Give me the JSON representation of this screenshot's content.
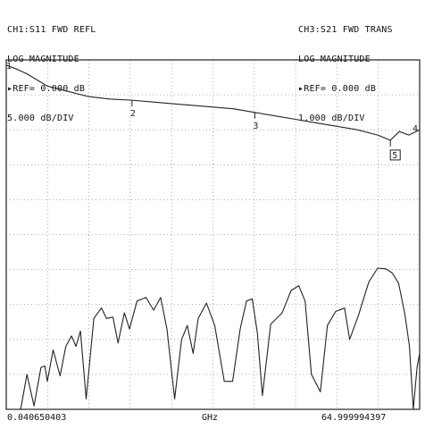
{
  "header": {
    "left": [
      "CH1:S11 FWD REFL",
      "LOG MAGNITUDE",
      "▸REF= 0.000 dB",
      "5.000 dB/DIV"
    ],
    "right": [
      "CH3:S21 FWD TRANS",
      "LOG MAGNITUDE",
      "▸REF= 0.000 dB",
      "1.000 dB/DIV"
    ]
  },
  "footer": {
    "start": "0.040650403",
    "unit": "GHz",
    "stop": "64.999994397"
  },
  "colors": {
    "trace": "#222222",
    "grid": "#9a9a9a",
    "frame": "#222222"
  },
  "chart_data": {
    "type": "line",
    "x_unit": "GHz",
    "xlim": [
      0.040650403,
      64.999994397
    ],
    "grid": true,
    "grid_divisions": {
      "x": 10,
      "y": 10
    },
    "markers": [
      "1",
      "2",
      "3",
      "4",
      "5"
    ],
    "series": [
      {
        "name": "CH3:S21 FWD TRANS",
        "scale_db_per_div": 1.0,
        "ref_db": 0.0,
        "x": [
          0.04,
          1.5,
          3.3,
          6.5,
          9.7,
          13,
          16.3,
          19.5,
          22.8,
          26,
          29.2,
          32.5,
          35.7,
          39,
          42.2,
          45.5,
          48.7,
          52,
          55.2,
          58.4,
          60.4,
          61.8,
          63.3,
          65
        ],
        "y": [
          -0.15,
          -0.25,
          -0.4,
          -0.75,
          -0.9,
          -1.05,
          -1.12,
          -1.15,
          -1.2,
          -1.25,
          -1.3,
          -1.35,
          -1.4,
          -1.5,
          -1.6,
          -1.7,
          -1.8,
          -1.9,
          -2.0,
          -2.15,
          -2.3,
          -2.05,
          -2.15,
          -2.0
        ]
      },
      {
        "name": "CH1:S11 FWD REFL",
        "scale_db_per_div": 5.0,
        "ref_db": 0.0,
        "x": [
          0.04,
          2.3,
          3.3,
          4.4,
          5.5,
          6.1,
          6.5,
          7.4,
          8.5,
          9.4,
          10.3,
          11.0,
          11.7,
          12.6,
          13.8,
          15.0,
          15.8,
          16.8,
          17.6,
          18.6,
          19.4,
          20.6,
          22.0,
          23.2,
          24.3,
          25.3,
          26.5,
          27.6,
          28.5,
          29.4,
          30.2,
          31.5,
          32.8,
          34.3,
          35.6,
          36.8,
          37.8,
          38.7,
          39.5,
          40.3,
          41.6,
          43.4,
          44.8,
          46.0,
          47.0,
          48.0,
          49.4,
          50.5,
          51.8,
          53.2,
          54.0,
          55.4,
          57.0,
          58.4,
          59.7,
          60.7,
          61.7,
          62.7,
          63.4,
          64.0,
          64.6,
          65.0
        ],
        "y": [
          -50.0,
          -50.0,
          -45.0,
          -49.5,
          -44.0,
          -43.8,
          -46.0,
          -41.5,
          -45.2,
          -41.0,
          -39.5,
          -41.0,
          -38.8,
          -48.5,
          -37.0,
          -35.5,
          -37.0,
          -36.8,
          -40.5,
          -36.2,
          -38.5,
          -34.5,
          -34.0,
          -35.8,
          -34.0,
          -38.5,
          -48.5,
          -40.0,
          -38.0,
          -42.0,
          -37.0,
          -34.8,
          -38.0,
          -46.0,
          -46.0,
          -38.5,
          -34.5,
          -34.2,
          -39.0,
          -48.0,
          -37.8,
          -36.2,
          -33.0,
          -32.3,
          -34.5,
          -45.0,
          -47.5,
          -38.0,
          -36.0,
          -35.5,
          -40.0,
          -36.5,
          -31.8,
          -29.8,
          -29.9,
          -30.5,
          -32.0,
          -36.5,
          -41.0,
          -50.0,
          -44.0,
          -42.0
        ]
      }
    ]
  }
}
